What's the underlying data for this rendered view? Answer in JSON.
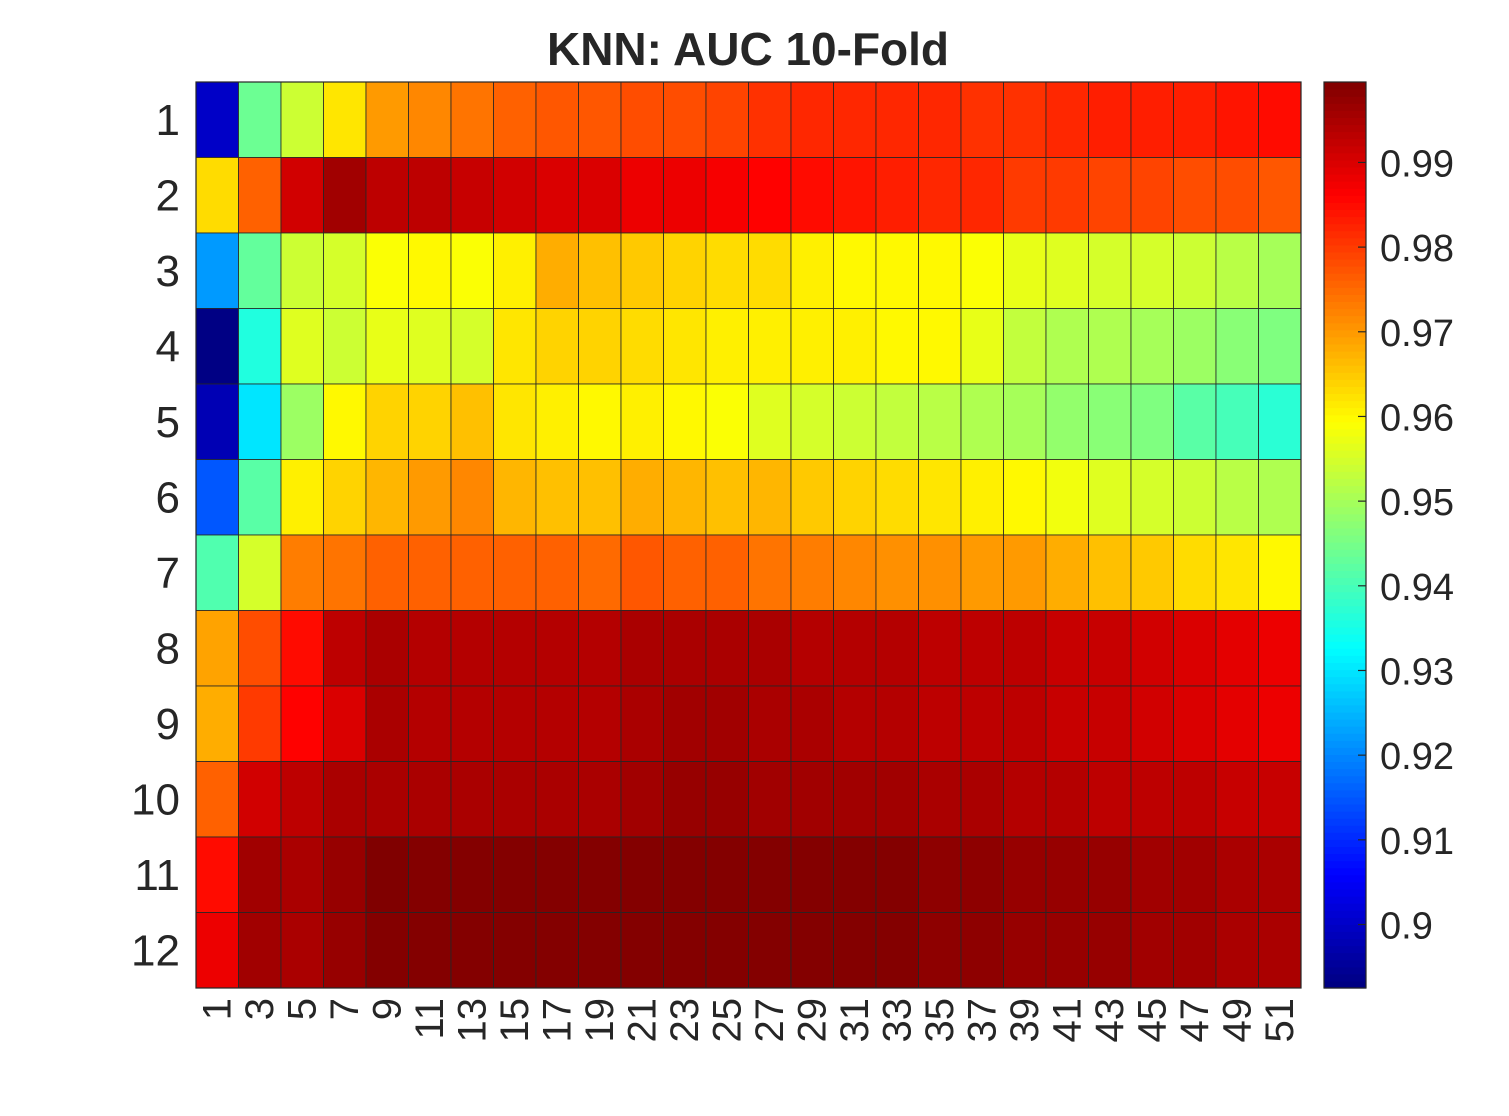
{
  "chart_data": {
    "type": "heatmap",
    "title": "KNN: AUC 10-Fold",
    "xlabel": "",
    "ylabel": "",
    "x_categories": [
      "1",
      "3",
      "5",
      "7",
      "9",
      "11",
      "13",
      "15",
      "17",
      "19",
      "21",
      "23",
      "25",
      "27",
      "29",
      "31",
      "33",
      "35",
      "37",
      "39",
      "41",
      "43",
      "45",
      "47",
      "49",
      "51"
    ],
    "y_categories": [
      "1",
      "2",
      "3",
      "4",
      "5",
      "6",
      "7",
      "8",
      "9",
      "10",
      "11",
      "12"
    ],
    "values": [
      [
        0.9,
        0.944,
        0.954,
        0.962,
        0.97,
        0.972,
        0.974,
        0.976,
        0.977,
        0.977,
        0.978,
        0.978,
        0.979,
        0.981,
        0.982,
        0.982,
        0.982,
        0.982,
        0.981,
        0.981,
        0.982,
        0.983,
        0.983,
        0.983,
        0.984,
        0.985
      ],
      [
        0.963,
        0.976,
        0.991,
        0.996,
        0.993,
        0.993,
        0.992,
        0.991,
        0.99,
        0.99,
        0.988,
        0.988,
        0.987,
        0.986,
        0.985,
        0.984,
        0.983,
        0.982,
        0.982,
        0.98,
        0.98,
        0.979,
        0.979,
        0.978,
        0.978,
        0.977
      ],
      [
        0.922,
        0.943,
        0.954,
        0.955,
        0.959,
        0.96,
        0.959,
        0.961,
        0.968,
        0.966,
        0.965,
        0.964,
        0.963,
        0.963,
        0.961,
        0.96,
        0.96,
        0.96,
        0.959,
        0.957,
        0.956,
        0.955,
        0.955,
        0.954,
        0.952,
        0.95
      ],
      [
        0.893,
        0.936,
        0.956,
        0.954,
        0.957,
        0.956,
        0.955,
        0.962,
        0.964,
        0.964,
        0.963,
        0.962,
        0.961,
        0.961,
        0.961,
        0.961,
        0.96,
        0.96,
        0.957,
        0.953,
        0.951,
        0.951,
        0.95,
        0.949,
        0.947,
        0.946
      ],
      [
        0.898,
        0.93,
        0.949,
        0.96,
        0.964,
        0.964,
        0.966,
        0.962,
        0.961,
        0.96,
        0.961,
        0.96,
        0.959,
        0.956,
        0.955,
        0.954,
        0.953,
        0.952,
        0.951,
        0.95,
        0.948,
        0.947,
        0.946,
        0.942,
        0.94,
        0.937
      ],
      [
        0.915,
        0.942,
        0.961,
        0.964,
        0.967,
        0.97,
        0.972,
        0.967,
        0.966,
        0.966,
        0.968,
        0.967,
        0.966,
        0.967,
        0.965,
        0.964,
        0.963,
        0.962,
        0.961,
        0.96,
        0.958,
        0.956,
        0.955,
        0.954,
        0.952,
        0.951
      ],
      [
        0.941,
        0.955,
        0.973,
        0.974,
        0.976,
        0.976,
        0.976,
        0.976,
        0.976,
        0.975,
        0.977,
        0.976,
        0.976,
        0.974,
        0.973,
        0.972,
        0.971,
        0.971,
        0.97,
        0.97,
        0.968,
        0.966,
        0.965,
        0.963,
        0.962,
        0.96
      ],
      [
        0.969,
        0.978,
        0.985,
        0.993,
        0.995,
        0.994,
        0.994,
        0.994,
        0.994,
        0.994,
        0.995,
        0.995,
        0.995,
        0.995,
        0.994,
        0.994,
        0.994,
        0.993,
        0.993,
        0.993,
        0.992,
        0.992,
        0.991,
        0.99,
        0.989,
        0.988
      ],
      [
        0.968,
        0.98,
        0.986,
        0.99,
        0.995,
        0.994,
        0.994,
        0.994,
        0.994,
        0.994,
        0.995,
        0.996,
        0.996,
        0.995,
        0.995,
        0.994,
        0.994,
        0.993,
        0.993,
        0.993,
        0.992,
        0.992,
        0.991,
        0.99,
        0.989,
        0.988
      ],
      [
        0.976,
        0.991,
        0.993,
        0.995,
        0.995,
        0.995,
        0.995,
        0.995,
        0.995,
        0.995,
        0.996,
        0.997,
        0.997,
        0.996,
        0.996,
        0.996,
        0.996,
        0.995,
        0.995,
        0.994,
        0.994,
        0.993,
        0.993,
        0.993,
        0.992,
        0.992
      ],
      [
        0.985,
        0.996,
        0.995,
        0.997,
        1.0,
        0.999,
        0.999,
        0.999,
        0.999,
        0.999,
        0.999,
        0.999,
        0.999,
        0.999,
        0.999,
        0.999,
        0.999,
        0.998,
        0.998,
        0.997,
        0.997,
        0.997,
        0.996,
        0.996,
        0.995,
        0.995
      ],
      [
        0.988,
        0.996,
        0.995,
        0.997,
        0.999,
        0.999,
        0.999,
        0.999,
        0.999,
        0.999,
        0.999,
        0.999,
        0.999,
        0.999,
        0.999,
        0.999,
        0.999,
        0.998,
        0.998,
        0.997,
        0.997,
        0.997,
        0.996,
        0.996,
        0.995,
        0.995
      ]
    ],
    "colormap": "jet",
    "colorbar": {
      "range": [
        0.8925,
        0.9995
      ],
      "ticks": [
        0.9,
        0.91,
        0.92,
        0.93,
        0.94,
        0.95,
        0.96,
        0.97,
        0.98,
        0.99
      ],
      "tick_labels": [
        "0.9",
        "0.91",
        "0.92",
        "0.93",
        "0.94",
        "0.95",
        "0.96",
        "0.97",
        "0.98",
        "0.99"
      ],
      "placement": "right"
    },
    "grid": true,
    "legend": "none"
  }
}
